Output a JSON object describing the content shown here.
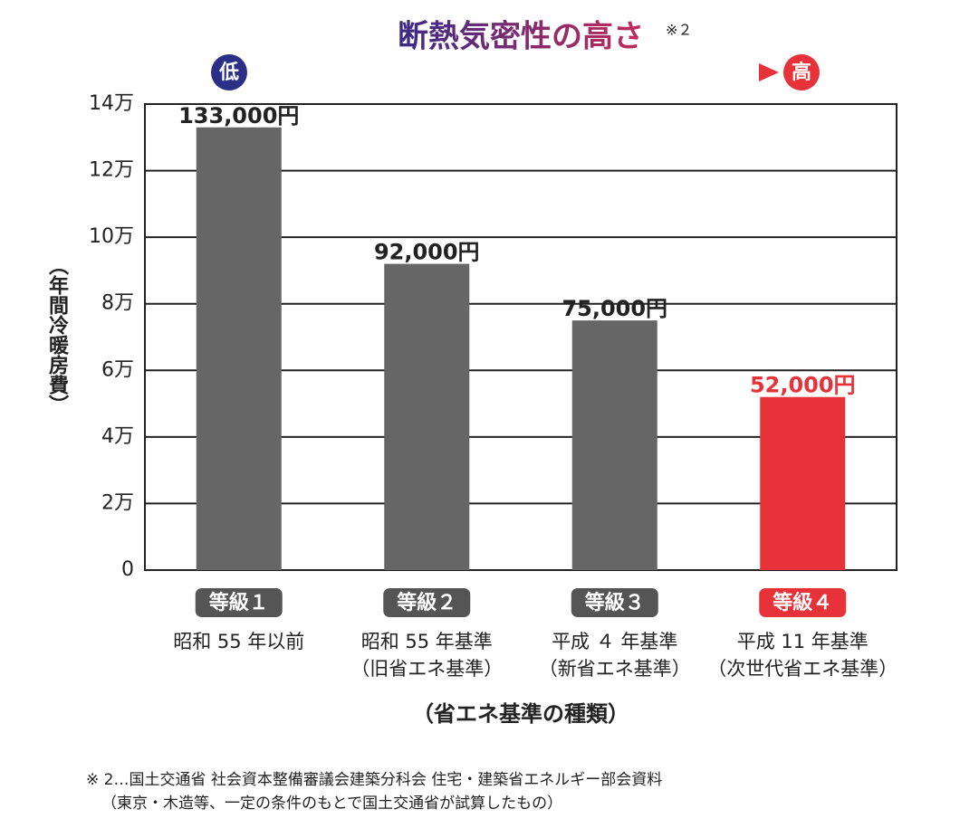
{
  "chart_data": {
    "type": "bar",
    "title": "断熱気密性の高さ",
    "title_note": "※２",
    "scale_low": "低",
    "scale_high": "高",
    "y_label": "（年間冷暖房費）",
    "x_label": "（省エネ基準の種類）",
    "categories": [
      "等級１",
      "等級２",
      "等級３",
      "等級４"
    ],
    "category_descriptions": [
      [
        "昭和 55 年以前"
      ],
      [
        "昭和 55 年基準",
        "（旧省エネ基準）"
      ],
      [
        "平成 ４ 年基準",
        "（新省エネ基準）"
      ],
      [
        "平成 11 年基準",
        "（次世代省エネ基準）"
      ]
    ],
    "values": [
      133000,
      92000,
      75000,
      52000
    ],
    "value_labels": [
      "133,000円",
      "92,000円",
      "75,000円",
      "52,000円"
    ],
    "colors": [
      "#666666",
      "#666666",
      "#666666",
      "#e8323a"
    ],
    "ylim": [
      0,
      140000
    ],
    "yticks": [
      0,
      {
        "value": 20000,
        "label": "2万"
      },
      {
        "value": 40000,
        "label": "4万"
      },
      {
        "value": 60000,
        "label": "6万"
      },
      {
        "value": 80000,
        "label": "8万"
      },
      {
        "value": 100000,
        "label": "10万"
      },
      {
        "value": 120000,
        "label": "12万"
      },
      {
        "value": 140000,
        "label": "14万"
      }
    ],
    "grid": true,
    "footnotes": [
      "※ 2…国土交通省 社会資本整備審議会建築分科会 住宅・建築省エネルギー部会資料",
      "（東京・木造等、一定の条件のもとで国土交通省が試算したもの）"
    ]
  }
}
